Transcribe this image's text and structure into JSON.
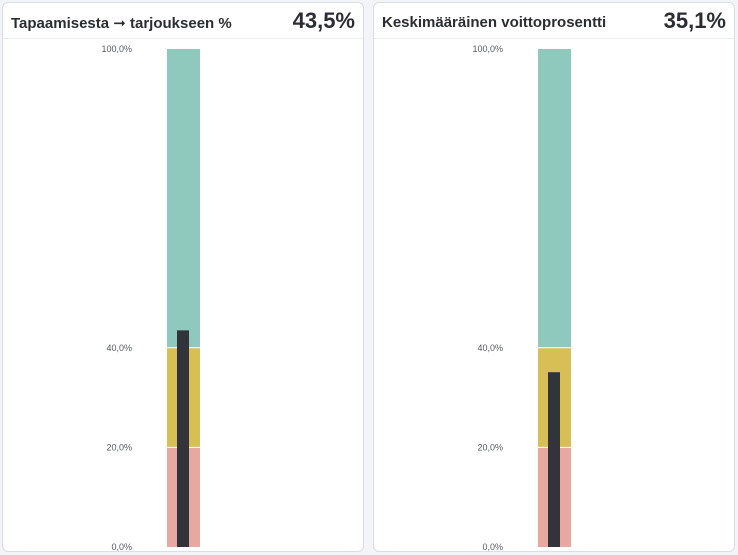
{
  "colors": {
    "band_low": "#e6a8a0",
    "band_mid": "#d8bf55",
    "band_high": "#8fc9be",
    "measure": "#33343b"
  },
  "chart_data": [
    {
      "type": "bullet",
      "title": "Tapaamisesta ➞ tarjoukseen %",
      "value_label": "43,5%",
      "value": 43.5,
      "ylim": [
        0,
        100
      ],
      "ticks": [
        {
          "value": 0,
          "label": "0,0%"
        },
        {
          "value": 20,
          "label": "20,0%"
        },
        {
          "value": 40,
          "label": "40,0%"
        },
        {
          "value": 100,
          "label": "100,0%"
        }
      ],
      "bands": [
        {
          "from": 0,
          "to": 20,
          "color": "#e6a8a0"
        },
        {
          "from": 20,
          "to": 40,
          "color": "#d8bf55"
        },
        {
          "from": 40,
          "to": 100,
          "color": "#8fc9be"
        }
      ]
    },
    {
      "type": "bullet",
      "title": "Keskimääräinen voittoprosentti",
      "value_label": "35,1%",
      "value": 35.1,
      "ylim": [
        0,
        100
      ],
      "ticks": [
        {
          "value": 0,
          "label": "0,0%"
        },
        {
          "value": 20,
          "label": "20,0%"
        },
        {
          "value": 40,
          "label": "40,0%"
        },
        {
          "value": 100,
          "label": "100,0%"
        }
      ],
      "bands": [
        {
          "from": 0,
          "to": 20,
          "color": "#e6a8a0"
        },
        {
          "from": 20,
          "to": 40,
          "color": "#d8bf55"
        },
        {
          "from": 40,
          "to": 100,
          "color": "#8fc9be"
        }
      ]
    }
  ]
}
